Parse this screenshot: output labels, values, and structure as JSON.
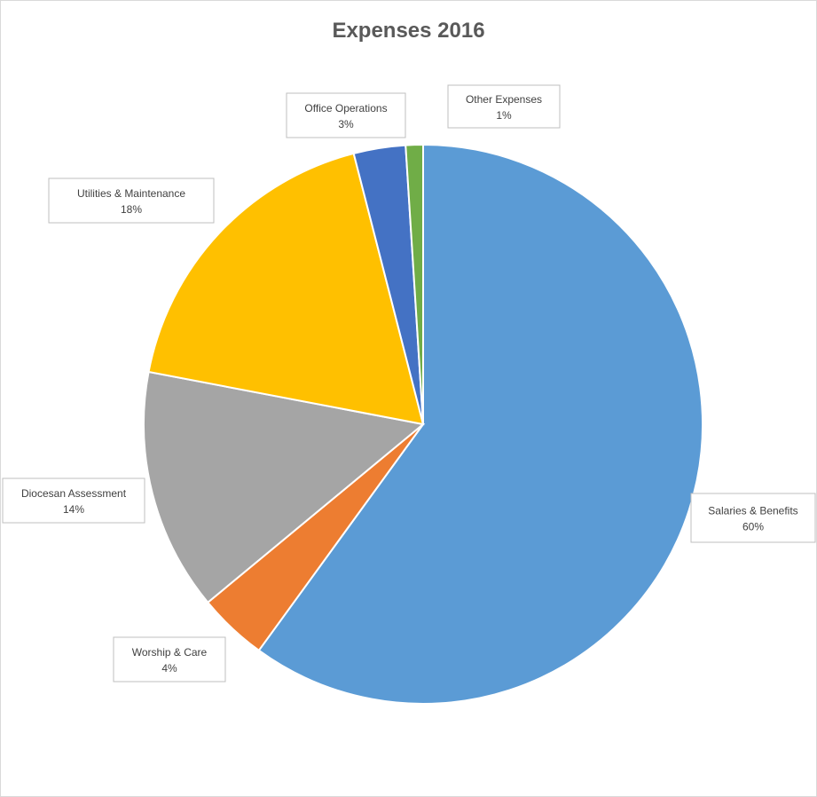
{
  "chart_data": {
    "type": "pie",
    "title": "Expenses 2016",
    "slices": [
      {
        "name": "Salaries & Benefits",
        "value": 60,
        "label": "60%",
        "color": "#5b9bd5"
      },
      {
        "name": "Worship & Care",
        "value": 4,
        "label": "4%",
        "color": "#ed7d31"
      },
      {
        "name": "Diocesan Assessment",
        "value": 14,
        "label": "14%",
        "color": "#a5a5a5"
      },
      {
        "name": "Utilities & Maintenance",
        "value": 18,
        "label": "18%",
        "color": "#ffc000"
      },
      {
        "name": "Office Operations",
        "value": 3,
        "label": "3%",
        "color": "#4472c4"
      },
      {
        "name": "Other Expenses",
        "value": 1,
        "label": "1%",
        "color": "#70ad47"
      }
    ],
    "start_angle": "12 o'clock",
    "direction": "clockwise",
    "legend": "none",
    "data_labels": "outside, category name and percentage"
  }
}
